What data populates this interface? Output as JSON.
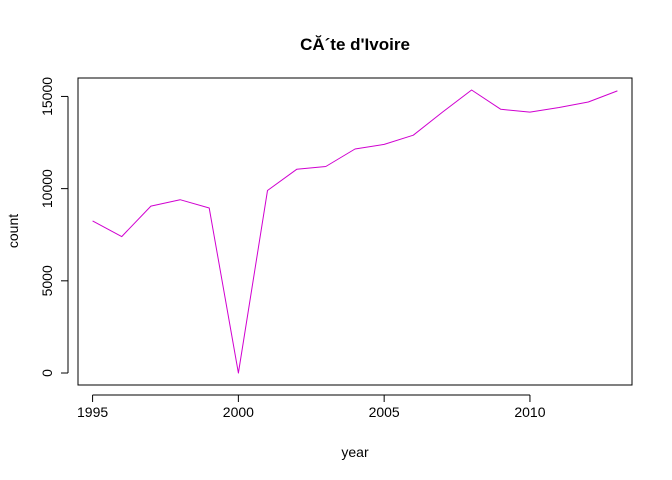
{
  "chart_data": {
    "type": "line",
    "title": "CĂ´te d'Ivoire",
    "xlabel": "year",
    "ylabel": "count",
    "xlim": [
      1994.5,
      2013.5
    ],
    "ylim": [
      -650,
      16000
    ],
    "x_ticks": [
      1995,
      2000,
      2005,
      2010
    ],
    "y_ticks": [
      0,
      5000,
      10000,
      15000
    ],
    "grid": false,
    "legend": "none",
    "series": [
      {
        "color": "#d000d0",
        "x": [
          1995,
          1996,
          1997,
          1998,
          1999,
          2000,
          2001,
          2002,
          2003,
          2004,
          2005,
          2006,
          2007,
          2008,
          2009,
          2010,
          2011,
          2012,
          2013
        ],
        "y": [
          8250,
          7400,
          9050,
          9400,
          8950,
          0,
          9900,
          11050,
          11200,
          12150,
          12400,
          12900,
          14150,
          15350,
          14300,
          14150,
          14400,
          14700,
          15300
        ]
      }
    ]
  }
}
